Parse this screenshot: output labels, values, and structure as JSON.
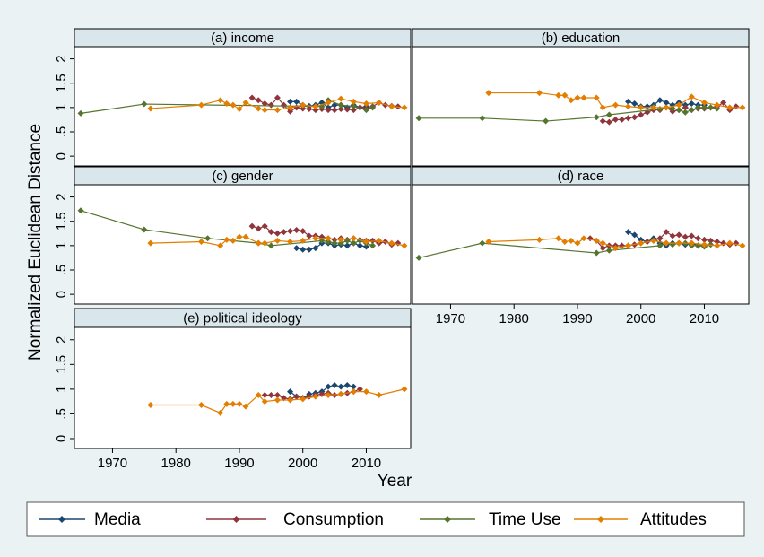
{
  "axis_titles": {
    "x": "Year",
    "y": "Normalized Euclidean Distance"
  },
  "legend_position": "bottom",
  "chart_data": [
    {
      "type": "line",
      "title": "(a) income",
      "xlim": [
        1964,
        2017
      ],
      "ylim": [
        -0.2,
        2.25
      ],
      "yticks": [
        0,
        {
          "value": 0.5,
          "label": ".5"
        },
        1,
        1.5,
        2
      ],
      "series": [
        {
          "name": "Media",
          "color": "#1a476f",
          "x": [
            1998,
            1999,
            2000,
            2001,
            2002,
            2003,
            2004,
            2005,
            2006,
            2007,
            2008,
            2009,
            2010
          ],
          "values": [
            1.12,
            1.12,
            1.05,
            1.03,
            1.05,
            1.1,
            1.0,
            1.05,
            1.05,
            1.0,
            1.05,
            1.0,
            1.02
          ]
        },
        {
          "name": "Consumption",
          "color": "#90353b",
          "x": [
            1992,
            1993,
            1994,
            1995,
            1996,
            1997,
            1998,
            1999,
            2000,
            2001,
            2002,
            2003,
            2004,
            2005,
            2006,
            2007,
            2008,
            2009,
            2010,
            2011,
            2012,
            2013,
            2014,
            2015
          ],
          "values": [
            1.2,
            1.15,
            1.08,
            1.05,
            1.2,
            1.05,
            0.92,
            1.0,
            0.98,
            0.97,
            0.95,
            0.97,
            0.95,
            0.95,
            0.97,
            0.96,
            0.95,
            1.0,
            0.98,
            1.02,
            1.1,
            1.05,
            1.03,
            1.02
          ]
        },
        {
          "name": "Time Use",
          "color": "#55752f",
          "x": [
            1965,
            1975,
            2003,
            2004,
            2006,
            2008,
            2010,
            2011
          ],
          "values": [
            0.88,
            1.07,
            1.02,
            1.15,
            1.05,
            1.02,
            0.95,
            1.0
          ]
        },
        {
          "name": "Attitudes",
          "color": "#e37e00",
          "x": [
            1976,
            1984,
            1987,
            1988,
            1989,
            1990,
            1991,
            1993,
            1994,
            1996,
            1998,
            2000,
            2002,
            2004,
            2006,
            2008,
            2010,
            2012,
            2014,
            2016
          ],
          "values": [
            0.98,
            1.05,
            1.15,
            1.08,
            1.05,
            0.97,
            1.1,
            0.98,
            0.95,
            0.95,
            1.0,
            1.05,
            1.02,
            1.1,
            1.18,
            1.12,
            1.08,
            1.1,
            1.02,
            1.0
          ]
        }
      ]
    },
    {
      "type": "line",
      "title": "(b) education",
      "xlim": [
        1964,
        2017
      ],
      "ylim": [
        -0.2,
        2.25
      ],
      "series": [
        {
          "name": "Media",
          "color": "#1a476f",
          "x": [
            1998,
            1999,
            2000,
            2001,
            2002,
            2003,
            2004,
            2005,
            2006,
            2007,
            2008,
            2009,
            2010
          ],
          "values": [
            1.12,
            1.08,
            1.02,
            1.02,
            1.05,
            1.15,
            1.1,
            1.05,
            1.1,
            1.05,
            1.08,
            1.05,
            1.05
          ]
        },
        {
          "name": "Consumption",
          "color": "#90353b",
          "x": [
            1994,
            1995,
            1996,
            1997,
            1998,
            1999,
            2000,
            2001,
            2002,
            2003,
            2004,
            2005,
            2006,
            2007,
            2008,
            2009,
            2010,
            2011,
            2012,
            2013,
            2014,
            2015
          ],
          "values": [
            0.72,
            0.7,
            0.75,
            0.75,
            0.78,
            0.8,
            0.85,
            0.9,
            0.95,
            0.95,
            1.0,
            0.92,
            0.95,
            1.0,
            0.95,
            0.98,
            0.98,
            1.0,
            1.02,
            1.1,
            0.95,
            1.02
          ]
        },
        {
          "name": "Time Use",
          "color": "#55752f",
          "x": [
            1965,
            1975,
            1985,
            1993,
            1995,
            2003,
            2004,
            2005,
            2006,
            2007,
            2008,
            2009,
            2010,
            2011,
            2012
          ],
          "values": [
            0.78,
            0.78,
            0.72,
            0.8,
            0.85,
            0.97,
            1.0,
            0.98,
            0.95,
            0.9,
            0.95,
            1.0,
            1.0,
            1.0,
            0.98
          ]
        },
        {
          "name": "Attitudes",
          "color": "#e37e00",
          "x": [
            1976,
            1984,
            1987,
            1988,
            1989,
            1990,
            1991,
            1993,
            1994,
            1996,
            1998,
            2000,
            2002,
            2004,
            2006,
            2008,
            2010,
            2012,
            2014,
            2016
          ],
          "values": [
            1.3,
            1.3,
            1.25,
            1.25,
            1.15,
            1.2,
            1.2,
            1.2,
            1.0,
            1.05,
            1.02,
            1.0,
            1.0,
            1.0,
            1.05,
            1.22,
            1.1,
            1.05,
            1.0,
            1.0
          ]
        }
      ]
    },
    {
      "type": "line",
      "title": "(c) gender",
      "xlim": [
        1964,
        2017
      ],
      "ylim": [
        -0.2,
        2.25
      ],
      "yticks": [
        0,
        {
          "value": 0.5,
          "label": ".5"
        },
        1,
        1.5,
        2
      ],
      "series": [
        {
          "name": "Media",
          "color": "#1a476f",
          "x": [
            1999,
            2000,
            2001,
            2002,
            2003,
            2004,
            2005,
            2006,
            2007,
            2008,
            2009,
            2010
          ],
          "values": [
            0.95,
            0.92,
            0.92,
            0.95,
            1.05,
            1.05,
            1.0,
            1.02,
            1.0,
            1.05,
            1.0,
            0.98
          ]
        },
        {
          "name": "Consumption",
          "color": "#90353b",
          "x": [
            1992,
            1993,
            1994,
            1995,
            1996,
            1997,
            1998,
            1999,
            2000,
            2001,
            2002,
            2003,
            2004,
            2005,
            2006,
            2007,
            2008,
            2009,
            2010,
            2011,
            2012,
            2013,
            2014,
            2015
          ],
          "values": [
            1.4,
            1.35,
            1.4,
            1.28,
            1.25,
            1.28,
            1.3,
            1.32,
            1.3,
            1.2,
            1.2,
            1.18,
            1.15,
            1.12,
            1.15,
            1.12,
            1.15,
            1.12,
            1.1,
            1.1,
            1.05,
            1.08,
            1.02,
            1.05
          ]
        },
        {
          "name": "Time Use",
          "color": "#55752f",
          "x": [
            1965,
            1975,
            1985,
            1993,
            1995,
            2003,
            2004,
            2005,
            2006,
            2007,
            2008,
            2009,
            2010,
            2011
          ],
          "values": [
            1.72,
            1.33,
            1.15,
            1.05,
            1.0,
            1.1,
            1.08,
            1.05,
            1.05,
            1.1,
            1.05,
            1.1,
            1.05,
            1.0
          ]
        },
        {
          "name": "Attitudes",
          "color": "#e37e00",
          "x": [
            1976,
            1984,
            1987,
            1988,
            1989,
            1990,
            1991,
            1993,
            1994,
            1996,
            1998,
            2000,
            2002,
            2004,
            2006,
            2008,
            2010,
            2012,
            2014,
            2016
          ],
          "values": [
            1.05,
            1.08,
            1.0,
            1.12,
            1.1,
            1.18,
            1.18,
            1.05,
            1.05,
            1.1,
            1.08,
            1.1,
            1.15,
            1.15,
            1.12,
            1.15,
            1.08,
            1.1,
            1.05,
            1.0
          ]
        }
      ]
    },
    {
      "type": "line",
      "title": "(d) race",
      "xlim": [
        1964,
        2017
      ],
      "ylim": [
        -0.2,
        2.25
      ],
      "xticks": [
        1970,
        1980,
        1990,
        2000,
        2010
      ],
      "series": [
        {
          "name": "Media",
          "color": "#1a476f",
          "x": [
            1998,
            1999,
            2000,
            2001,
            2002,
            2003,
            2004,
            2005,
            2006,
            2007,
            2008,
            2009,
            2010
          ],
          "values": [
            1.28,
            1.22,
            1.12,
            1.08,
            1.15,
            1.05,
            1.0,
            1.05,
            1.05,
            1.02,
            1.05,
            1.0,
            1.0
          ]
        },
        {
          "name": "Consumption",
          "color": "#90353b",
          "x": [
            1992,
            1993,
            1994,
            1995,
            1996,
            1997,
            1998,
            1999,
            2000,
            2001,
            2002,
            2003,
            2004,
            2005,
            2006,
            2007,
            2008,
            2009,
            2010,
            2011,
            2012,
            2013,
            2014,
            2015
          ],
          "values": [
            1.15,
            1.1,
            0.95,
            1.0,
            1.0,
            1.0,
            1.0,
            1.02,
            1.05,
            1.08,
            1.1,
            1.15,
            1.28,
            1.2,
            1.22,
            1.18,
            1.2,
            1.15,
            1.12,
            1.1,
            1.08,
            1.05,
            1.02,
            1.05
          ]
        },
        {
          "name": "Time Use",
          "color": "#55752f",
          "x": [
            1965,
            1975,
            1993,
            1995,
            2003,
            2004,
            2005,
            2006,
            2007,
            2008,
            2009,
            2010,
            2011
          ],
          "values": [
            0.75,
            1.05,
            0.85,
            0.9,
            1.0,
            1.05,
            1.02,
            1.05,
            1.05,
            1.0,
            1.0,
            0.98,
            1.02
          ]
        },
        {
          "name": "Attitudes",
          "color": "#e37e00",
          "x": [
            1976,
            1984,
            1987,
            1988,
            1989,
            1990,
            1991,
            1993,
            1994,
            1996,
            1998,
            2000,
            2002,
            2004,
            2006,
            2008,
            2010,
            2012,
            2014,
            2016
          ],
          "values": [
            1.08,
            1.12,
            1.15,
            1.08,
            1.1,
            1.05,
            1.15,
            1.1,
            1.05,
            0.95,
            1.0,
            1.05,
            1.1,
            1.05,
            1.05,
            1.05,
            1.02,
            1.0,
            1.05,
            1.0
          ]
        }
      ]
    },
    {
      "type": "line",
      "title": "(e) political ideology",
      "xlim": [
        1964,
        2017
      ],
      "ylim": [
        -0.2,
        2.25
      ],
      "xticks": [
        1970,
        1980,
        1990,
        2000,
        2010
      ],
      "yticks": [
        0,
        {
          "value": 0.5,
          "label": ".5"
        },
        1,
        1.5,
        2
      ],
      "series": [
        {
          "name": "Media",
          "color": "#1a476f",
          "x": [
            1998,
            1999,
            2000,
            2001,
            2002,
            2003,
            2004,
            2005,
            2006,
            2007,
            2008
          ],
          "values": [
            0.95,
            0.85,
            0.82,
            0.9,
            0.92,
            0.95,
            1.05,
            1.08,
            1.05,
            1.08,
            1.05
          ]
        },
        {
          "name": "Consumption",
          "color": "#90353b",
          "x": [
            1994,
            1995,
            1996,
            1997,
            1998,
            1999,
            2000,
            2001,
            2002,
            2003,
            2004,
            2005,
            2006,
            2007,
            2008,
            2009
          ],
          "values": [
            0.88,
            0.88,
            0.88,
            0.82,
            0.8,
            0.85,
            0.82,
            0.85,
            0.88,
            0.9,
            0.92,
            0.88,
            0.9,
            0.92,
            0.95,
            1.0
          ]
        },
        {
          "name": "Attitudes",
          "color": "#e37e00",
          "x": [
            1976,
            1984,
            1987,
            1988,
            1989,
            1990,
            1991,
            1993,
            1994,
            1996,
            1998,
            2000,
            2002,
            2004,
            2006,
            2008,
            2010,
            2012,
            2016
          ],
          "values": [
            0.68,
            0.68,
            0.52,
            0.7,
            0.7,
            0.7,
            0.65,
            0.88,
            0.75,
            0.78,
            0.78,
            0.8,
            0.85,
            0.88,
            0.9,
            0.95,
            0.95,
            0.88,
            1.0
          ]
        }
      ]
    }
  ]
}
